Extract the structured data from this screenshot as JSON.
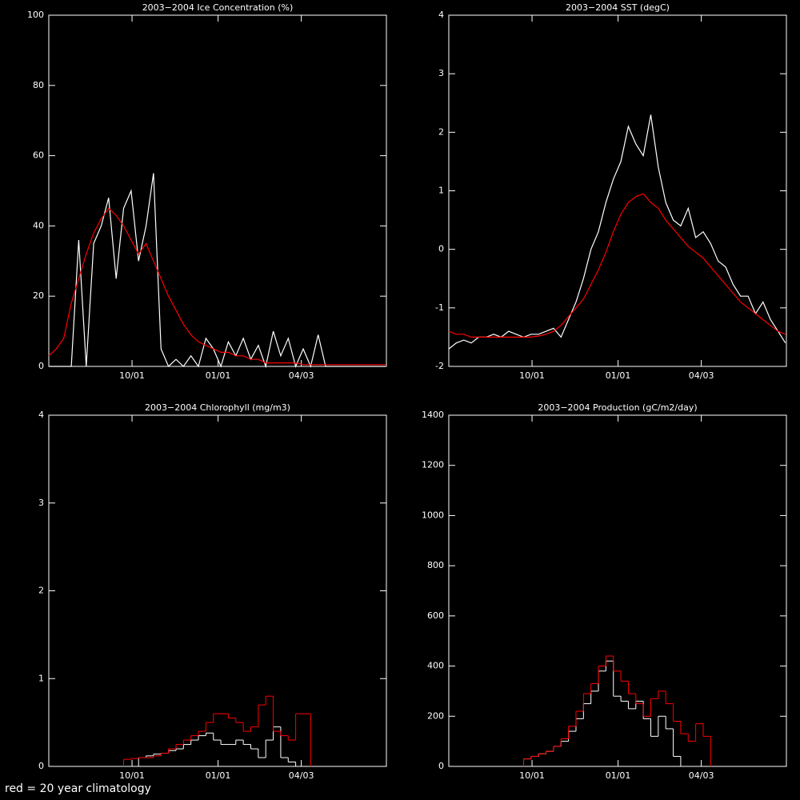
{
  "chart_data": [
    {
      "type": "line",
      "title": "2003−2004 Ice Concentration (%)",
      "x": [
        0,
        8,
        16,
        24,
        32,
        40,
        48,
        56,
        64,
        72,
        80,
        88,
        96,
        104,
        112,
        120,
        128,
        136,
        144,
        152,
        160,
        168,
        176,
        184,
        192,
        200,
        208,
        216,
        224,
        232,
        240,
        248,
        256,
        264,
        272,
        280,
        288,
        296,
        304,
        312,
        320,
        328,
        336,
        344,
        352,
        360
      ],
      "xlim": [
        0,
        361
      ],
      "xticks": [
        {
          "value": 89,
          "label": "10/01"
        },
        {
          "value": 181,
          "label": "01/01"
        },
        {
          "value": 270,
          "label": "04/03"
        }
      ],
      "ylim": [
        0,
        100
      ],
      "yticks": [
        0,
        20,
        40,
        60,
        80,
        100
      ],
      "series": [
        {
          "color": "#ffffff",
          "values": [
            0,
            0,
            0,
            0,
            36,
            0,
            35,
            40,
            48,
            25,
            45,
            50,
            30,
            40,
            55,
            5,
            0,
            2,
            0,
            3,
            0,
            8,
            5,
            0,
            7,
            3,
            8,
            2,
            6,
            0,
            10,
            3,
            8,
            0,
            5,
            0,
            9,
            0,
            0,
            0,
            0,
            0,
            0,
            0,
            0,
            0
          ]
        },
        {
          "color": "#ff0000",
          "values": [
            3,
            5,
            8,
            18,
            25,
            32,
            38,
            42,
            45,
            43,
            40,
            36,
            32,
            35,
            30,
            25,
            20,
            16,
            12,
            9,
            7,
            6,
            5,
            4,
            4,
            3,
            3,
            2,
            2,
            1,
            1,
            1,
            1,
            1,
            0.5,
            0.5,
            0.5,
            0.5,
            0.5,
            0.5,
            0.5,
            0.5,
            0.5,
            0.5,
            0.5,
            0.5
          ]
        }
      ]
    },
    {
      "type": "line",
      "title": "2003−2004 SST (degC)",
      "x": [
        0,
        8,
        16,
        24,
        32,
        40,
        48,
        56,
        64,
        72,
        80,
        88,
        96,
        104,
        112,
        120,
        128,
        136,
        144,
        152,
        160,
        168,
        176,
        184,
        192,
        200,
        208,
        216,
        224,
        232,
        240,
        248,
        256,
        264,
        272,
        280,
        288,
        296,
        304,
        312,
        320,
        328,
        336,
        344,
        352,
        360
      ],
      "xlim": [
        0,
        361
      ],
      "xticks": [
        {
          "value": 89,
          "label": "10/01"
        },
        {
          "value": 181,
          "label": "01/01"
        },
        {
          "value": 270,
          "label": "04/03"
        }
      ],
      "ylim": [
        -2,
        4
      ],
      "yticks": [
        -2,
        -1,
        0,
        1,
        2,
        3,
        4
      ],
      "series": [
        {
          "color": "#ffffff",
          "values": [
            -1.7,
            -1.6,
            -1.55,
            -1.6,
            -1.5,
            -1.5,
            -1.45,
            -1.5,
            -1.4,
            -1.45,
            -1.5,
            -1.45,
            -1.45,
            -1.4,
            -1.35,
            -1.5,
            -1.2,
            -0.9,
            -0.5,
            0.0,
            0.3,
            0.8,
            1.2,
            1.5,
            2.1,
            1.8,
            1.6,
            2.3,
            1.4,
            0.8,
            0.5,
            0.4,
            0.7,
            0.2,
            0.3,
            0.1,
            -0.2,
            -0.3,
            -0.6,
            -0.8,
            -0.8,
            -1.1,
            -0.9,
            -1.2,
            -1.4,
            -1.6
          ]
        },
        {
          "color": "#ff0000",
          "values": [
            -1.4,
            -1.45,
            -1.45,
            -1.5,
            -1.5,
            -1.5,
            -1.5,
            -1.5,
            -1.5,
            -1.5,
            -1.5,
            -1.5,
            -1.48,
            -1.45,
            -1.4,
            -1.3,
            -1.15,
            -1.0,
            -0.85,
            -0.6,
            -0.35,
            -0.05,
            0.3,
            0.6,
            0.8,
            0.9,
            0.95,
            0.8,
            0.7,
            0.5,
            0.35,
            0.2,
            0.05,
            -0.05,
            -0.15,
            -0.3,
            -0.45,
            -0.6,
            -0.75,
            -0.9,
            -1.0,
            -1.1,
            -1.2,
            -1.3,
            -1.4,
            -1.45
          ]
        }
      ]
    },
    {
      "type": "line",
      "step": true,
      "title": "2003−2004 Chlorophyll (mg/m3)",
      "x": [
        80,
        88,
        96,
        104,
        112,
        120,
        128,
        136,
        144,
        152,
        160,
        168,
        176,
        184,
        192,
        200,
        208,
        216,
        224,
        232,
        240,
        248,
        256,
        264,
        272
      ],
      "xlim": [
        0,
        361
      ],
      "xticks": [
        {
          "value": 89,
          "label": "10/01"
        },
        {
          "value": 181,
          "label": "01/01"
        },
        {
          "value": 270,
          "label": "04/03"
        }
      ],
      "ylim": [
        0,
        4
      ],
      "yticks": [
        0,
        1,
        2,
        3,
        4
      ],
      "series": [
        {
          "color": "#ffffff",
          "values": [
            null,
            null,
            0.1,
            0.12,
            0.14,
            0.15,
            0.18,
            0.2,
            0.25,
            0.3,
            0.35,
            0.38,
            0.3,
            0.25,
            0.25,
            0.3,
            0.25,
            0.2,
            0.1,
            0.3,
            0.45,
            0.1,
            0.05,
            null,
            null
          ]
        },
        {
          "color": "#ff0000",
          "values": [
            0.08,
            0.09,
            0.1,
            0.1,
            0.12,
            0.15,
            0.2,
            0.25,
            0.3,
            0.35,
            0.4,
            0.5,
            0.6,
            0.6,
            0.55,
            0.5,
            0.4,
            0.45,
            0.7,
            0.8,
            0.4,
            0.35,
            0.3,
            0.6,
            0.6
          ]
        }
      ]
    },
    {
      "type": "line",
      "step": true,
      "title": "2003−2004 Production (gC/m2/day)",
      "x": [
        80,
        88,
        96,
        104,
        112,
        120,
        128,
        136,
        144,
        152,
        160,
        168,
        176,
        184,
        192,
        200,
        208,
        216,
        224,
        232,
        240,
        248,
        256,
        264,
        272
      ],
      "xlim": [
        0,
        361
      ],
      "xticks": [
        {
          "value": 89,
          "label": "10/01"
        },
        {
          "value": 181,
          "label": "01/01"
        },
        {
          "value": 270,
          "label": "04/03"
        }
      ],
      "ylim": [
        0,
        1400
      ],
      "yticks": [
        0,
        200,
        400,
        600,
        800,
        1000,
        1200,
        1400
      ],
      "series": [
        {
          "color": "#ffffff",
          "values": [
            30,
            40,
            50,
            60,
            80,
            100,
            140,
            190,
            250,
            300,
            380,
            420,
            280,
            260,
            230,
            260,
            190,
            120,
            200,
            150,
            40,
            null,
            null,
            null,
            null
          ]
        },
        {
          "color": "#ff0000",
          "values": [
            30,
            40,
            50,
            60,
            80,
            110,
            160,
            220,
            290,
            330,
            400,
            440,
            380,
            340,
            290,
            250,
            200,
            270,
            300,
            250,
            180,
            130,
            100,
            170,
            120
          ]
        }
      ]
    }
  ],
  "footnote": "red = 20 year climatology"
}
